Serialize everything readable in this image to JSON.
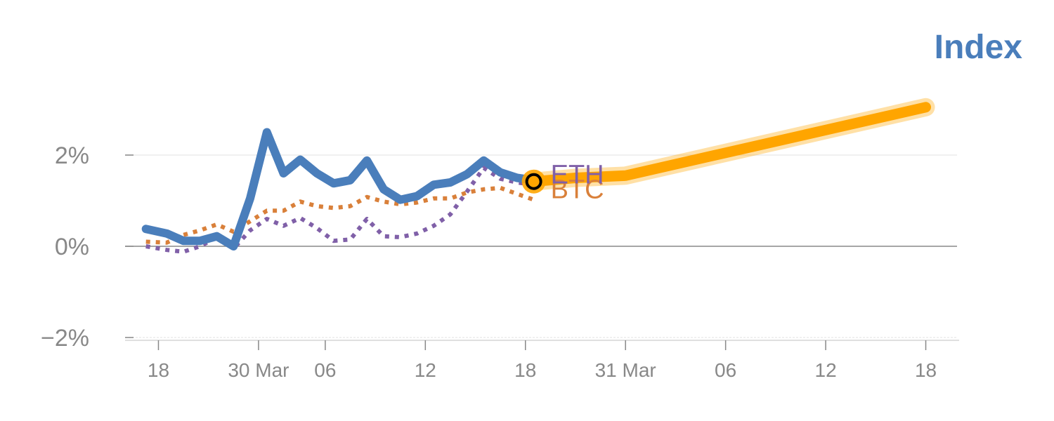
{
  "chart_data": {
    "type": "line",
    "title": "Index",
    "title_color": "#4a7ebb",
    "ylabel": "",
    "xlabel": "",
    "y_range": [
      -2,
      2
    ],
    "y_ticks": [
      {
        "value": 2,
        "label": "2%"
      },
      {
        "value": 0,
        "label": "0%"
      },
      {
        "value": -2,
        "label": "−2%"
      }
    ],
    "x_ticks": [
      {
        "day": 4,
        "label": "18"
      },
      {
        "day": 16,
        "label": "30 Mar"
      },
      {
        "day": 24,
        "label": "06"
      },
      {
        "day": 36,
        "label": "12"
      },
      {
        "day": 48,
        "label": "18"
      },
      {
        "day": 60,
        "label": "31 Mar"
      },
      {
        "day": 72,
        "label": "06"
      },
      {
        "day": 84,
        "label": "12"
      },
      {
        "day": 96,
        "label": "18"
      }
    ],
    "x_day_range": [
      0,
      100
    ],
    "series": [
      {
        "key": "index",
        "color": "#4a7ebb",
        "style": "solid",
        "points": [
          [
            2.5,
            0.38
          ],
          [
            5,
            0.28
          ],
          [
            7,
            0.12
          ],
          [
            9,
            0.12
          ],
          [
            11,
            0.22
          ],
          [
            13,
            0.0
          ],
          [
            15,
            1.05
          ],
          [
            17,
            2.5
          ],
          [
            19,
            1.6
          ],
          [
            21,
            1.9
          ],
          [
            23,
            1.6
          ],
          [
            25,
            1.38
          ],
          [
            27,
            1.45
          ],
          [
            29,
            1.88
          ],
          [
            31,
            1.25
          ],
          [
            33,
            1.02
          ],
          [
            35,
            1.1
          ],
          [
            37,
            1.35
          ],
          [
            39,
            1.4
          ],
          [
            41,
            1.58
          ],
          [
            43,
            1.88
          ],
          [
            45,
            1.62
          ],
          [
            47,
            1.5
          ],
          [
            49,
            1.45
          ]
        ]
      },
      {
        "key": "btc",
        "name": "BTC",
        "color": "#d9803a",
        "style": "dotted",
        "points": [
          [
            2.5,
            0.1
          ],
          [
            5,
            0.08
          ],
          [
            7,
            0.25
          ],
          [
            9,
            0.35
          ],
          [
            11,
            0.48
          ],
          [
            13,
            0.32
          ],
          [
            15,
            0.55
          ],
          [
            17,
            0.78
          ],
          [
            19,
            0.78
          ],
          [
            21,
            0.98
          ],
          [
            23,
            0.88
          ],
          [
            25,
            0.84
          ],
          [
            27,
            0.88
          ],
          [
            29,
            1.08
          ],
          [
            31,
            0.98
          ],
          [
            33,
            0.92
          ],
          [
            35,
            0.96
          ],
          [
            37,
            1.05
          ],
          [
            39,
            1.05
          ],
          [
            41,
            1.18
          ],
          [
            43,
            1.25
          ],
          [
            45,
            1.28
          ],
          [
            47,
            1.15
          ],
          [
            49,
            1.02
          ]
        ]
      },
      {
        "key": "eth",
        "name": "ETH",
        "color": "#8060a8",
        "style": "dotted",
        "points": [
          [
            2.5,
            0.0
          ],
          [
            5,
            -0.08
          ],
          [
            7,
            -0.12
          ],
          [
            9,
            0.0
          ],
          [
            11,
            0.2
          ],
          [
            13,
            -0.05
          ],
          [
            15,
            0.35
          ],
          [
            17,
            0.6
          ],
          [
            19,
            0.45
          ],
          [
            21,
            0.62
          ],
          [
            23,
            0.4
          ],
          [
            25,
            0.12
          ],
          [
            27,
            0.15
          ],
          [
            29,
            0.6
          ],
          [
            31,
            0.22
          ],
          [
            33,
            0.2
          ],
          [
            35,
            0.28
          ],
          [
            37,
            0.45
          ],
          [
            39,
            0.7
          ],
          [
            41,
            1.2
          ],
          [
            43,
            1.72
          ],
          [
            45,
            1.48
          ],
          [
            47,
            1.4
          ],
          [
            49,
            1.35
          ]
        ]
      },
      {
        "key": "forecast",
        "color": "#ffa500",
        "style": "thick",
        "points": [
          [
            49,
            1.42
          ],
          [
            54,
            1.5
          ],
          [
            60,
            1.55
          ],
          [
            72,
            2.05
          ],
          [
            84,
            2.55
          ],
          [
            96,
            3.05
          ]
        ]
      }
    ],
    "marker": {
      "day": 49,
      "value": 1.42,
      "color": "#ffa500"
    },
    "legend": "inline-labels"
  }
}
